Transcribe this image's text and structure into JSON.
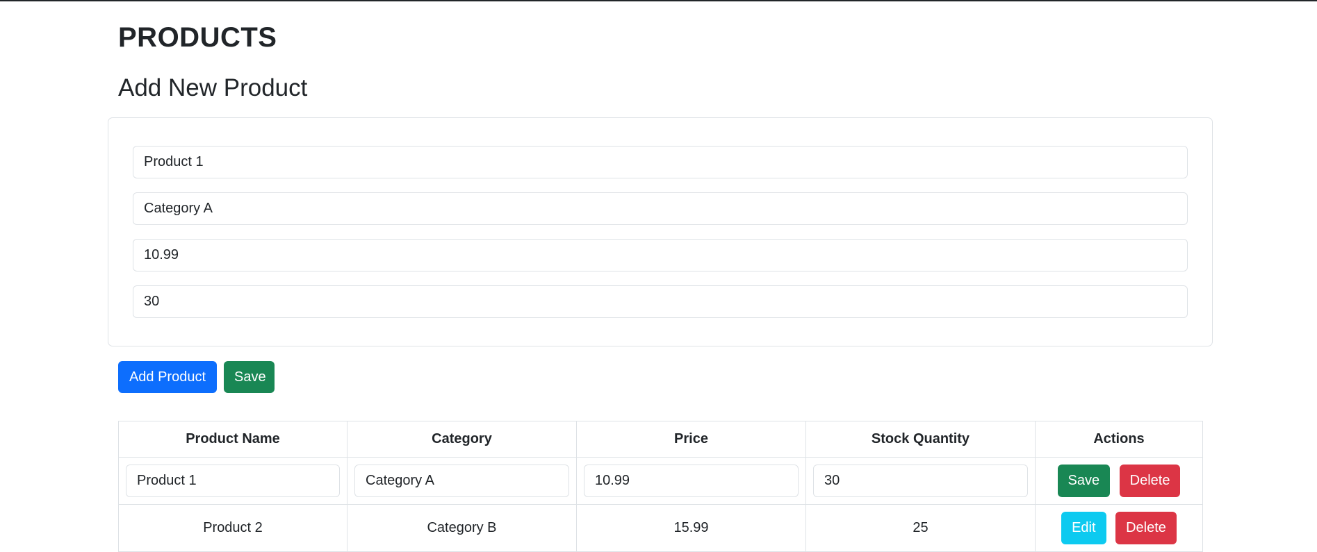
{
  "page_title": "PRODUCTS",
  "section_title": "Add New Product",
  "form": {
    "name_value": "Product 1",
    "category_value": "Category A",
    "price_value": "10.99",
    "stock_value": "30"
  },
  "form_buttons": {
    "add_label": "Add Product",
    "save_label": "Save"
  },
  "table": {
    "headers": [
      "Product Name",
      "Category",
      "Price",
      "Stock Quantity",
      "Actions"
    ],
    "edit_row": {
      "name": "Product 1",
      "category": "Category A",
      "price": "10.99",
      "stock": "30",
      "save_label": "Save",
      "delete_label": "Delete"
    },
    "rows": [
      {
        "name": "Product 2",
        "category": "Category B",
        "price": "15.99",
        "stock": "25",
        "edit_label": "Edit",
        "delete_label": "Delete"
      }
    ]
  },
  "colors": {
    "primary": "#0d6efd",
    "success": "#198754",
    "danger": "#dc3545",
    "info": "#0dcaf0",
    "border": "#dee2e6"
  }
}
